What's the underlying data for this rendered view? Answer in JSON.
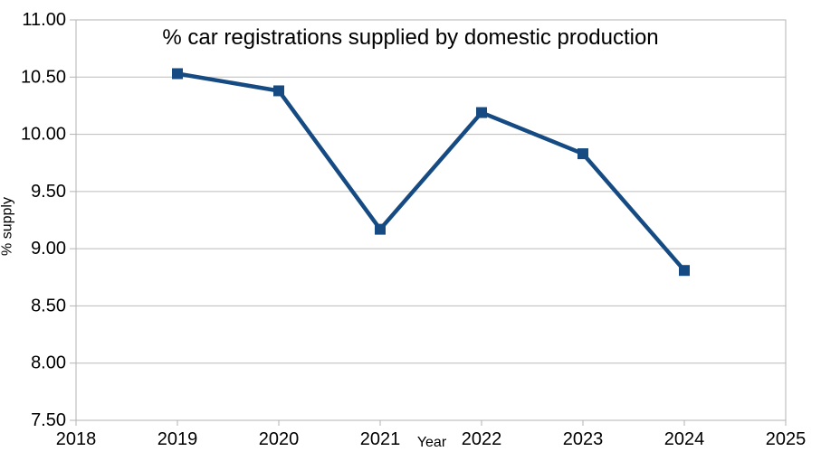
{
  "chart_data": {
    "type": "line",
    "title": "% car registrations supplied by domestic production",
    "xlabel": "Year",
    "ylabel": "% supply",
    "x": [
      2019,
      2020,
      2021,
      2022,
      2023,
      2024
    ],
    "series": [
      {
        "name": "% supply",
        "values": [
          10.53,
          10.38,
          9.17,
          10.19,
          9.83,
          8.81
        ]
      }
    ],
    "xlim": [
      2018,
      2025
    ],
    "ylim": [
      7.5,
      11.0
    ],
    "x_tick_step": 1,
    "y_tick_step": 0.5,
    "x_tick_labels": [
      "2018",
      "2019",
      "2020",
      "2021",
      "2022",
      "2023",
      "2024",
      "2025"
    ],
    "y_tick_labels": [
      "7.50",
      "8.00",
      "8.50",
      "9.00",
      "9.50",
      "10.00",
      "10.50",
      "11.00"
    ],
    "grid": "horizontal",
    "legend": false,
    "marker": "square",
    "colors": {
      "series": "#154A82",
      "grid": "#BBBBBB",
      "axis": "#B3B3B3",
      "text": "#000000",
      "background": "#FFFFFF"
    }
  }
}
